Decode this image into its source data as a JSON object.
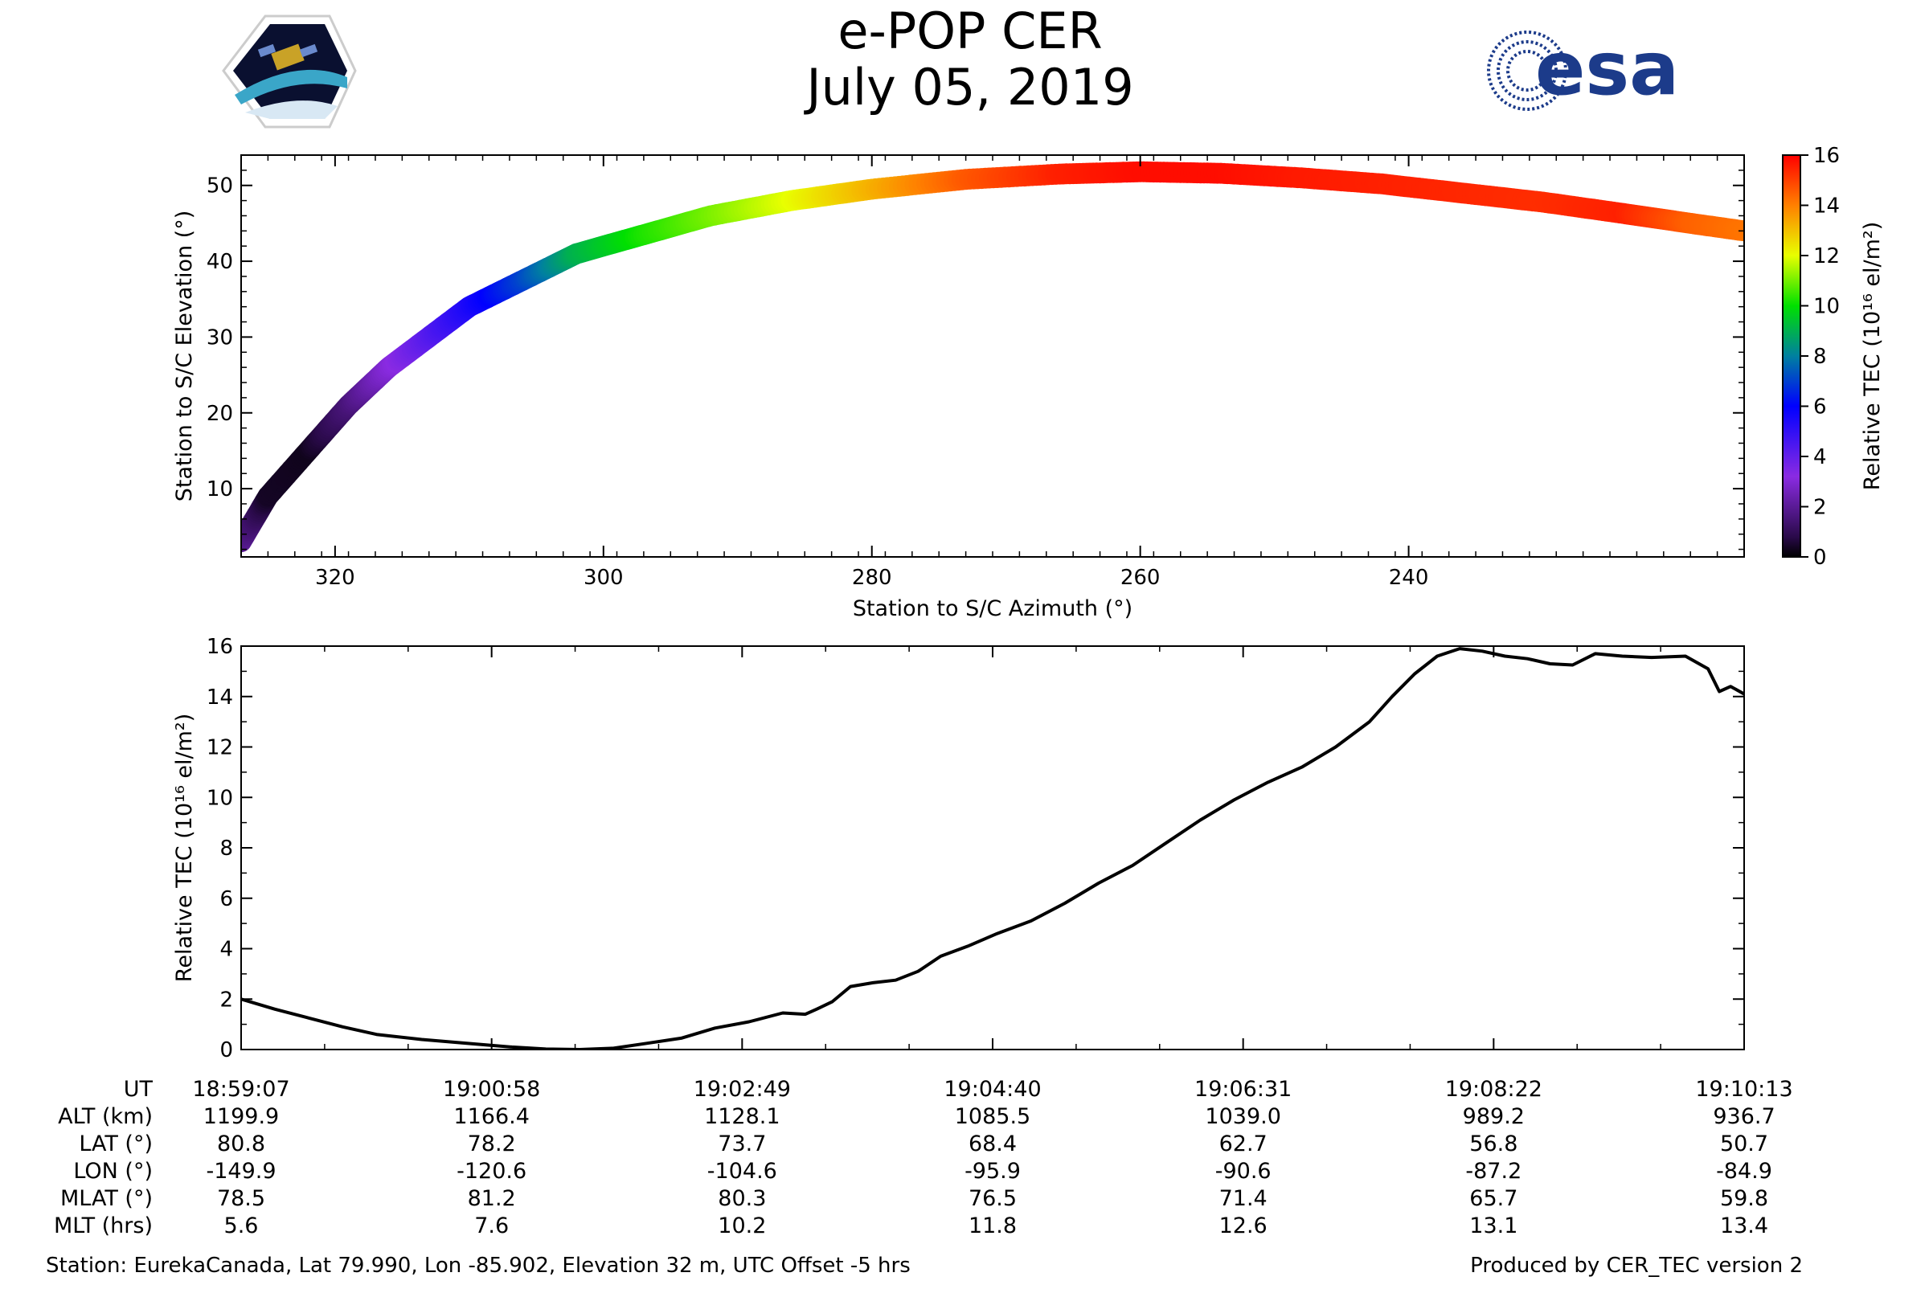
{
  "title": "e-POP CER",
  "date": "July 05, 2019",
  "logos": {
    "left": "CASSIOPE mission logo",
    "right_text": "esa"
  },
  "colors": {
    "esa_blue": "#1c3b8a",
    "track_line": "#000000"
  },
  "chart_data": [
    {
      "type": "scatter",
      "name": "sky-track",
      "xlabel": "Station to S/C Azimuth (°)",
      "ylabel": "Station to S/C Elevation (°)",
      "xlim": [
        327,
        215
      ],
      "ylim": [
        1,
        54
      ],
      "xticks": [
        320,
        300,
        280,
        260,
        240
      ],
      "yticks": [
        10,
        20,
        30,
        40,
        50
      ],
      "colorbar": {
        "label": "Relative TEC (10¹⁶ el/m²)",
        "range": [
          0,
          16
        ],
        "ticks": [
          0,
          2,
          4,
          6,
          8,
          10,
          12,
          14,
          16
        ]
      },
      "points": [
        {
          "az": 327,
          "el": 3,
          "tec": 2.0
        },
        {
          "az": 325,
          "el": 9,
          "tec": 0.4
        },
        {
          "az": 322,
          "el": 15,
          "tec": 0.3
        },
        {
          "az": 319,
          "el": 21,
          "tec": 1.5
        },
        {
          "az": 316,
          "el": 26,
          "tec": 3.0
        },
        {
          "az": 313,
          "el": 30,
          "tec": 4.2
        },
        {
          "az": 310,
          "el": 34,
          "tec": 5.4
        },
        {
          "az": 306,
          "el": 37.5,
          "tec": 7.0
        },
        {
          "az": 302,
          "el": 41,
          "tec": 9.0
        },
        {
          "az": 297,
          "el": 43.5,
          "tec": 10.2
        },
        {
          "az": 292,
          "el": 46,
          "tec": 11.0
        },
        {
          "az": 286,
          "el": 48,
          "tec": 12.0
        },
        {
          "az": 280,
          "el": 49.5,
          "tec": 13.2
        },
        {
          "az": 273,
          "el": 50.8,
          "tec": 14.6
        },
        {
          "az": 266,
          "el": 51.5,
          "tec": 15.5
        },
        {
          "az": 260,
          "el": 51.8,
          "tec": 15.8
        },
        {
          "az": 254,
          "el": 51.6,
          "tec": 15.8
        },
        {
          "az": 248,
          "el": 51.0,
          "tec": 15.6
        },
        {
          "az": 242,
          "el": 50.2,
          "tec": 15.5
        },
        {
          "az": 236,
          "el": 49.0,
          "tec": 15.4
        },
        {
          "az": 230,
          "el": 47.8,
          "tec": 15.3
        },
        {
          "az": 224,
          "el": 46.3,
          "tec": 15.5
        },
        {
          "az": 219,
          "el": 45.0,
          "tec": 14.5
        },
        {
          "az": 215,
          "el": 44.0,
          "tec": 14.2
        }
      ]
    },
    {
      "type": "line",
      "name": "tec-timeseries",
      "ylabel": "Relative TEC (10¹⁶ el/m²)",
      "ylim": [
        0,
        16
      ],
      "yticks": [
        0,
        2,
        4,
        6,
        8,
        10,
        12,
        14,
        16
      ],
      "xlim": [
        0,
        666
      ],
      "xtick_seconds": [
        0,
        111,
        222,
        333,
        444,
        555,
        666
      ],
      "series": [
        {
          "name": "Relative TEC",
          "x": [
            0,
            15,
            30,
            45,
            60,
            80,
            100,
            120,
            135,
            150,
            165,
            180,
            195,
            210,
            225,
            240,
            250,
            255,
            262,
            270,
            280,
            290,
            300,
            310,
            322,
            335,
            350,
            365,
            380,
            395,
            410,
            425,
            440,
            455,
            470,
            485,
            500,
            510,
            520,
            530,
            540,
            550,
            560,
            570,
            580,
            590,
            600,
            612,
            625,
            640,
            650,
            655,
            660,
            666
          ],
          "y": [
            2.0,
            1.6,
            1.25,
            0.9,
            0.6,
            0.4,
            0.25,
            0.1,
            0.02,
            0.0,
            0.05,
            0.25,
            0.45,
            0.85,
            1.1,
            1.45,
            1.4,
            1.6,
            1.9,
            2.5,
            2.65,
            2.75,
            3.1,
            3.7,
            4.1,
            4.6,
            5.1,
            5.8,
            6.6,
            7.3,
            8.2,
            9.1,
            9.9,
            10.6,
            11.2,
            12.0,
            13.0,
            14.0,
            14.9,
            15.6,
            15.9,
            15.8,
            15.6,
            15.5,
            15.3,
            15.25,
            15.7,
            15.6,
            15.55,
            15.6,
            15.1,
            14.2,
            14.4,
            14.1
          ]
        }
      ]
    }
  ],
  "info_table": {
    "row_labels": [
      "UT",
      "ALT (km)",
      "LAT (°)",
      "LON (°)",
      "MLAT (°)",
      "MLT (hrs)"
    ],
    "columns": [
      [
        "18:59:07",
        "1199.9",
        "80.8",
        "-149.9",
        "78.5",
        "5.6"
      ],
      [
        "19:00:58",
        "1166.4",
        "78.2",
        "-120.6",
        "81.2",
        "7.6"
      ],
      [
        "19:02:49",
        "1128.1",
        "73.7",
        "-104.6",
        "80.3",
        "10.2"
      ],
      [
        "19:04:40",
        "1085.5",
        "68.4",
        "-95.9",
        "76.5",
        "11.8"
      ],
      [
        "19:06:31",
        "1039.0",
        "62.7",
        "-90.6",
        "71.4",
        "12.6"
      ],
      [
        "19:08:22",
        "989.2",
        "56.8",
        "-87.2",
        "65.7",
        "13.1"
      ],
      [
        "19:10:13",
        "936.7",
        "50.7",
        "-84.9",
        "59.8",
        "13.4"
      ]
    ]
  },
  "footer": {
    "station": "Station: EurekaCanada, Lat 79.990, Lon -85.902, Elevation 32 m, UTC Offset -5 hrs",
    "produced_by": "Produced by CER_TEC version 2"
  }
}
